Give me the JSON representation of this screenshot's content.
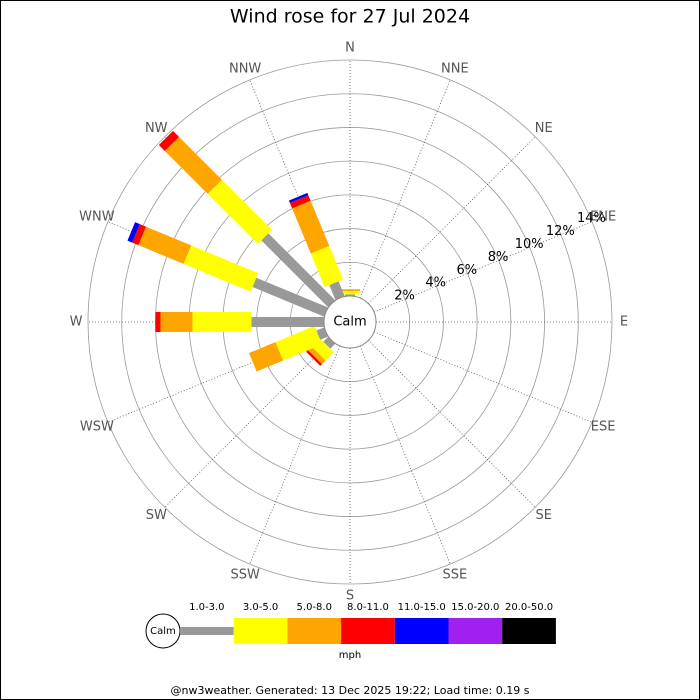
{
  "chart_data": {
    "type": "windrose",
    "title": "Wind rose for 27 Jul 2024",
    "calm_label": "Calm",
    "unit": "mph",
    "footer": "@nw3weather. Generated: 13 Dec 2025 19:22; Load time: 0.19 s",
    "directions": [
      "N",
      "NNE",
      "NE",
      "ENE",
      "E",
      "ESE",
      "SE",
      "SSE",
      "S",
      "SSW",
      "SW",
      "WSW",
      "W",
      "WNW",
      "NW",
      "NNW"
    ],
    "ylim": [
      0,
      14
    ],
    "yticks": [
      {
        "value": 2,
        "label": "2%"
      },
      {
        "value": 4,
        "label": "4%"
      },
      {
        "value": 6,
        "label": "6%"
      },
      {
        "value": 8,
        "label": "8%"
      },
      {
        "value": 10,
        "label": "10%"
      },
      {
        "value": 12,
        "label": "12%"
      },
      {
        "value": 14,
        "label": "14%"
      }
    ],
    "series": [
      {
        "name": "1.0-3.0",
        "color": "#999999",
        "values": [
          0.1,
          0,
          0,
          0,
          0,
          0,
          0,
          0,
          0,
          0,
          0.4,
          0.5,
          4.3,
          4.6,
          5.6,
          0.95
        ]
      },
      {
        "name": "3.0-5.0",
        "color": "#ffff00",
        "values": [
          0.2,
          0,
          0,
          0,
          0,
          0,
          0,
          0,
          0,
          0,
          0.7,
          2.5,
          3.5,
          4.3,
          4.2,
          2.15
        ]
      },
      {
        "name": "5.0-8.0",
        "color": "#ffa500",
        "values": [
          0.1,
          0,
          0,
          0,
          0,
          0,
          0,
          0,
          0,
          0,
          0.3,
          1.7,
          1.9,
          2.9,
          3.6,
          2.9
        ]
      },
      {
        "name": "8.0-11.0",
        "color": "#ff0000",
        "values": [
          0,
          0,
          0,
          0,
          0,
          0,
          0,
          0,
          0,
          0,
          0.15,
          0,
          0.3,
          0.4,
          0.5,
          0.35
        ]
      },
      {
        "name": "11.0-15.0",
        "color": "#0000ff",
        "values": [
          0,
          0,
          0,
          0,
          0,
          0,
          0,
          0,
          0,
          0,
          0,
          0,
          0,
          0.3,
          0,
          0.15
        ]
      },
      {
        "name": "15.0-20.0",
        "color": "#a020f0",
        "values": [
          0,
          0,
          0,
          0,
          0,
          0,
          0,
          0,
          0,
          0,
          0,
          0,
          0,
          0,
          0,
          0
        ]
      },
      {
        "name": "20.0-50.0",
        "color": "#000000",
        "values": [
          0,
          0,
          0,
          0,
          0,
          0,
          0,
          0,
          0,
          0,
          0,
          0,
          0,
          0,
          0,
          0
        ]
      }
    ]
  }
}
